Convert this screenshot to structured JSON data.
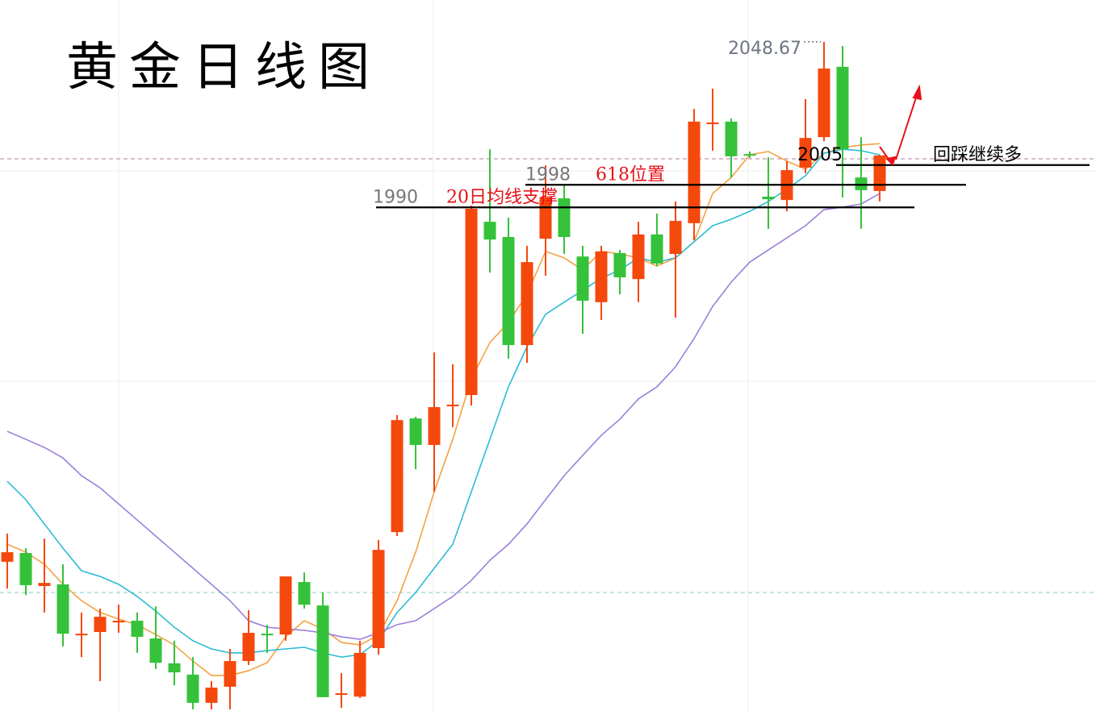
{
  "chart_data": {
    "type": "candlestick",
    "title": "黄金日线图",
    "ylim": [
      1811.5,
      2063.5
    ],
    "up_color": "#f5480c",
    "down_color": "#35c23a",
    "candles": [
      [
        1864.4,
        1874.4,
        1854.9,
        1867.8
      ],
      [
        1867.5,
        1869.2,
        1852.6,
        1856.1
      ],
      [
        1855.8,
        1872.6,
        1846.4,
        1856.9
      ],
      [
        1856.4,
        1863.5,
        1834.4,
        1838.9
      ],
      [
        1838.4,
        1846.4,
        1830.6,
        1838.9
      ],
      [
        1839.5,
        1847.8,
        1822.1,
        1844.9
      ],
      [
        1842.9,
        1849.2,
        1839.2,
        1843.5
      ],
      [
        1843.5,
        1846.4,
        1832.1,
        1837.8
      ],
      [
        1837.2,
        1848.6,
        1826.4,
        1828.6
      ],
      [
        1828.4,
        1836.4,
        1820.6,
        1825.2
      ],
      [
        1824.4,
        1830.6,
        1812.1,
        1814.4
      ],
      [
        1814.4,
        1822.1,
        1812.1,
        1819.8
      ],
      [
        1820.1,
        1833.5,
        1812.1,
        1829.2
      ],
      [
        1829.2,
        1847.2,
        1827.8,
        1839.2
      ],
      [
        1838.9,
        1842.1,
        1832.1,
        1838.4
      ],
      [
        1838.6,
        1859.2,
        1836.4,
        1859.2
      ],
      [
        1857.2,
        1860.6,
        1847.8,
        1849.2
      ],
      [
        1848.9,
        1853.5,
        1816.4,
        1816.4
      ],
      [
        1817.2,
        1824.9,
        1812.6,
        1817.8
      ],
      [
        1816.6,
        1836.4,
        1816.1,
        1832.1
      ],
      [
        1833.8,
        1872.1,
        1831.5,
        1868.6
      ],
      [
        1874.9,
        1916.4,
        1873.5,
        1914.6
      ],
      [
        1915.2,
        1915.8,
        1897.2,
        1905.8
      ],
      [
        1905.8,
        1938.6,
        1889.2,
        1919.2
      ],
      [
        1919.5,
        1934.4,
        1912.1,
        1920.1
      ],
      [
        1923.5,
        1990.6,
        1919.8,
        1989.5
      ],
      [
        1984.9,
        2010.6,
        1966.9,
        1978.6
      ],
      [
        1979.5,
        1986.4,
        1936.4,
        1941.2
      ],
      [
        1941.2,
        1976.4,
        1934.9,
        1970.6
      ],
      [
        1978.9,
        2004.9,
        1965.8,
        1993.5
      ],
      [
        1993.2,
        1997.8,
        1973.5,
        1979.5
      ],
      [
        1972.6,
        1976.4,
        1945.2,
        1956.9
      ],
      [
        1956.4,
        1976.4,
        1950.1,
        1974.4
      ],
      [
        1973.8,
        1974.9,
        1959.2,
        1965.2
      ],
      [
        1964.6,
        1984.9,
        1956.4,
        1980.4
      ],
      [
        1980.4,
        1987.8,
        1969.2,
        1970.1
      ],
      [
        1973.5,
        1992.1,
        1950.9,
        1985.2
      ],
      [
        1984.4,
        2024.9,
        1978.4,
        2020.4
      ],
      [
        2019.5,
        2032.1,
        2010.1,
        2020.1
      ],
      [
        2020.4,
        2021.5,
        2000.6,
        2008.1
      ],
      [
        2008.9,
        2009.8,
        2007.5,
        2008.4
      ],
      [
        1993.8,
        2007.8,
        1982.4,
        1992.9
      ],
      [
        1992.6,
        2006.4,
        1988.6,
        2003.2
      ],
      [
        2004.1,
        2028.4,
        2002.1,
        2014.6
      ],
      [
        2014.9,
        2048.67,
        2013.5,
        2039.2
      ],
      [
        2039.8,
        2047.2,
        1993.5,
        2010.6
      ],
      [
        2000.6,
        2014.9,
        1982.4,
        1996.1
      ],
      [
        1995.8,
        2008.6,
        1992.1,
        2008.4
      ]
    ],
    "series": [
      {
        "color": "#f5a142",
        "values": [
          1870.6,
          1867.8,
          1863.5,
          1856.4,
          1850.6,
          1846.4,
          1844.1,
          1842.1,
          1838.6,
          1834.9,
          1829.2,
          1824.1,
          1824.1,
          1825.8,
          1828.6,
          1837.8,
          1843.5,
          1840.6,
          1835.8,
          1834.9,
          1838.4,
          1850.6,
          1867.8,
          1889.2,
          1907.8,
          1929.2,
          1942.1,
          1949.2,
          1959.2,
          1974.4,
          1972.1,
          1967.8,
          1974.4,
          1973.5,
          1972.1,
          1969.2,
          1972.1,
          1977.8,
          1994.9,
          2000.6,
          2008.6,
          2009.8,
          2006.4,
          2003.5,
          2009.2,
          2011.2,
          2012.1,
          2012.6
        ]
      },
      {
        "color": "#2cbcd4",
        "values": [
          1892.9,
          1886.4,
          1877.8,
          1869.2,
          1861.2,
          1859.2,
          1856.4,
          1852.1,
          1846.9,
          1841.2,
          1836.4,
          1833.5,
          1832.1,
          1832.1,
          1832.9,
          1833.5,
          1834.1,
          1832.1,
          1830.6,
          1831.5,
          1836.4,
          1846.4,
          1853.5,
          1862.1,
          1870.6,
          1889.2,
          1907.8,
          1926.4,
          1940.6,
          1952.1,
          1956.4,
          1960.6,
          1964.9,
          1967.8,
          1972.1,
          1970.6,
          1972.1,
          1977.8,
          1983.5,
          1985.8,
          1988.6,
          1992.1,
          1996.4,
          2001.2,
          2009.2,
          2010.6,
          2010.1,
          2008.6
        ]
      },
      {
        "color": "#9d80da",
        "values": [
          1910.6,
          1907.8,
          1904.9,
          1901.2,
          1894.9,
          1890.6,
          1884.9,
          1879.2,
          1873.5,
          1867.8,
          1862.1,
          1856.4,
          1850.6,
          1843.5,
          1841.2,
          1840.6,
          1840.1,
          1839.2,
          1837.8,
          1836.9,
          1839.2,
          1842.1,
          1843.5,
          1847.8,
          1852.1,
          1857.8,
          1864.9,
          1870.6,
          1877.8,
          1886.4,
          1894.9,
          1902.1,
          1909.2,
          1914.9,
          1922.1,
          1926.4,
          1933.5,
          1943.5,
          1954.9,
          1963.5,
          1970.6,
          1974.9,
          1979.2,
          1983.5,
          1989.2,
          1990.1,
          1991.2,
          1994.9
        ]
      }
    ],
    "hlines": [
      {
        "value": 2007.2,
        "color": "#b07aa0"
      },
      {
        "value": 1853.5,
        "color": "#7fd1c0"
      }
    ],
    "levels": [
      {
        "value": 1990,
        "note": "20日均线支撑"
      },
      {
        "value": 1998,
        "note": "618位置"
      },
      {
        "value": 2005,
        "note": "回踩继续多"
      }
    ]
  }
}
